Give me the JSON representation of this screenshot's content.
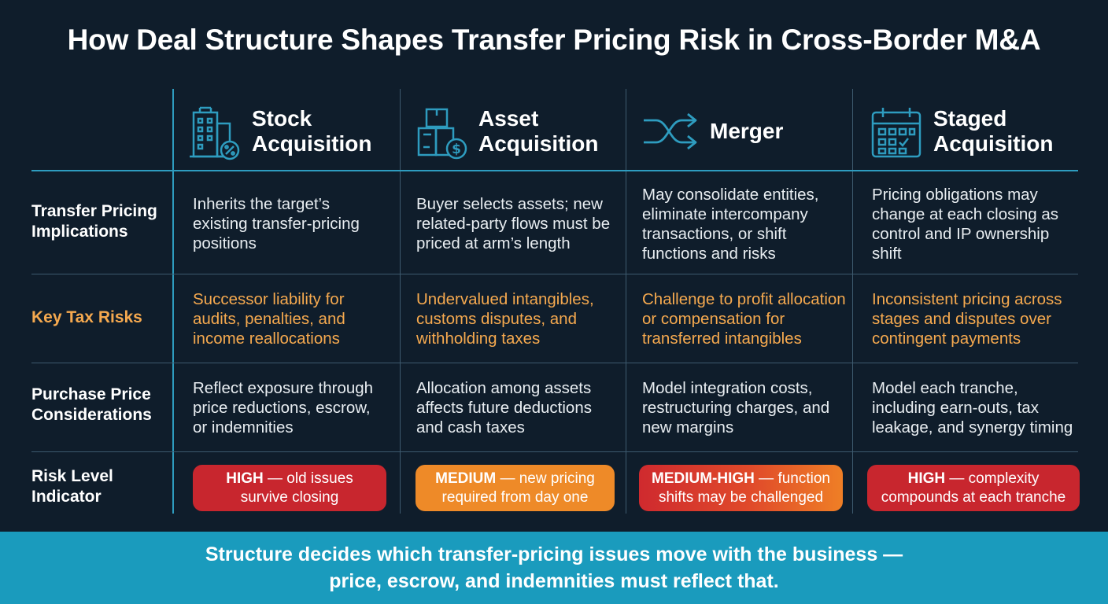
{
  "title": "How Deal Structure Shapes Transfer Pricing Risk in Cross-Border M&A",
  "colors": {
    "background": "#0f1d2b",
    "accent": "#2e9cbf",
    "orange_text": "#f5a94f",
    "high": "#c8262e",
    "medium": "#ee8a28",
    "footer": "#1a9bbd"
  },
  "columns": [
    {
      "label": "Stock\nAcquisition",
      "icon": "building-percent-icon"
    },
    {
      "label": "Asset\nAcquisition",
      "icon": "boxes-dollar-icon"
    },
    {
      "label": "Merger",
      "icon": "shuffle-arrows-icon"
    },
    {
      "label": "Staged\nAcquisition",
      "icon": "calendar-icon"
    }
  ],
  "rows": [
    {
      "label": "Transfer Pricing\nImplications",
      "cells": [
        "Inherits the target’s existing transfer-pricing positions",
        "Buyer selects assets; new related-party flows must be priced at arm’s length",
        "May consolidate entities, eliminate intercompany transactions, or shift functions and risks",
        "Pricing obligations may change at each closing as control and IP ownership shift"
      ]
    },
    {
      "label": "Key Tax Risks",
      "cells": [
        "Successor liability for audits, penalties, and income reallocations",
        "Undervalued intangibles, customs disputes, and withholding taxes",
        "Challenge to profit allocation or compensation for transferred intangibles",
        "Inconsistent pricing across stages and disputes over contingent payments"
      ]
    },
    {
      "label": "Purchase Price\nConsiderations",
      "cells": [
        "Reflect exposure through price reductions, escrow, or indemnities",
        "Allocation among assets affects future deductions and cash taxes",
        "Model integration costs, restructuring charges, and new margins",
        "Model each tranche, including earn-outs, tax leakage, and synergy timing"
      ]
    },
    {
      "label": "Risk Level\nIndicator",
      "badges": [
        {
          "level": "HIGH",
          "line1": " — old issues",
          "line2": "survive closing",
          "color": "#c8262e"
        },
        {
          "level": "MEDIUM",
          "line1": " — new pricing",
          "line2": "required from day one",
          "color": "#ee8a28"
        },
        {
          "level": "MEDIUM-HIGH",
          "line1": " — function",
          "line2": "shifts may be challenged",
          "color": "#e0432a"
        },
        {
          "level": "HIGH",
          "line1": " — complexity",
          "line2": "compounds at each tranche",
          "color": "#c8262e"
        }
      ]
    }
  ],
  "footer": {
    "line1": "Structure decides which transfer-pricing issues move with the business —",
    "line2": "price, escrow, and indemnities must reflect that."
  }
}
